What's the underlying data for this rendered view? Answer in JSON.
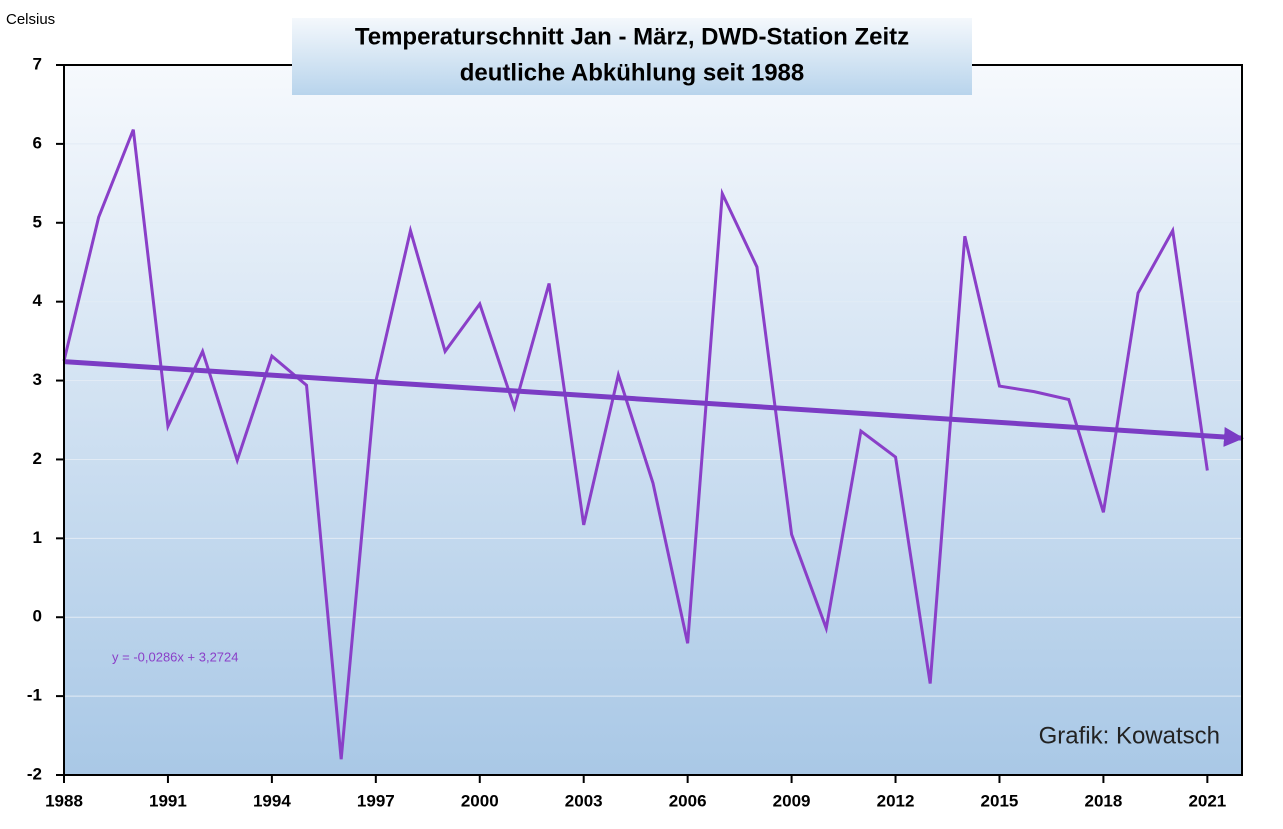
{
  "chart_data": {
    "type": "line",
    "title": "Temperaturschnitt Jan - März, DWD-Station Zeitz",
    "subtitle": "deutliche Abkühlung seit 1988",
    "y_label": "Celsius",
    "annotations": [
      "y = -0,0286x + 3,2724",
      "Grafik: Kowatsch"
    ],
    "x": [
      1988,
      1989,
      1990,
      1991,
      1992,
      1993,
      1994,
      1995,
      1996,
      1997,
      1998,
      1999,
      2000,
      2001,
      2002,
      2003,
      2004,
      2005,
      2006,
      2007,
      2008,
      2009,
      2010,
      2011,
      2012,
      2013,
      2014,
      2015,
      2016,
      2017,
      2018,
      2019,
      2020,
      2021
    ],
    "series": [
      {
        "name": "Temperatur",
        "color": "#8a3fc8",
        "values": [
          3.25,
          5.07,
          6.18,
          2.42,
          3.37,
          1.99,
          3.31,
          2.94,
          -1.8,
          2.99,
          4.9,
          3.37,
          3.97,
          2.66,
          4.23,
          1.17,
          3.07,
          1.7,
          -0.33,
          5.37,
          4.44,
          1.05,
          -0.14,
          2.36,
          2.03,
          -0.84,
          4.83,
          2.93,
          2.86,
          2.76,
          1.33,
          4.11,
          4.9,
          1.86
        ]
      },
      {
        "name": "Trend",
        "color": "#7b3cc4",
        "x": [
          1988,
          2022
        ],
        "values": [
          3.24,
          2.27
        ]
      }
    ],
    "xlim": [
      1988,
      2022
    ],
    "xticks": [
      1988,
      1991,
      1994,
      1997,
      2000,
      2003,
      2006,
      2009,
      2012,
      2015,
      2018,
      2021
    ],
    "ylim": [
      -2,
      7
    ],
    "yticks": [
      -2,
      -1,
      0,
      1,
      2,
      3,
      4,
      5,
      6,
      7
    ],
    "grid": true
  }
}
